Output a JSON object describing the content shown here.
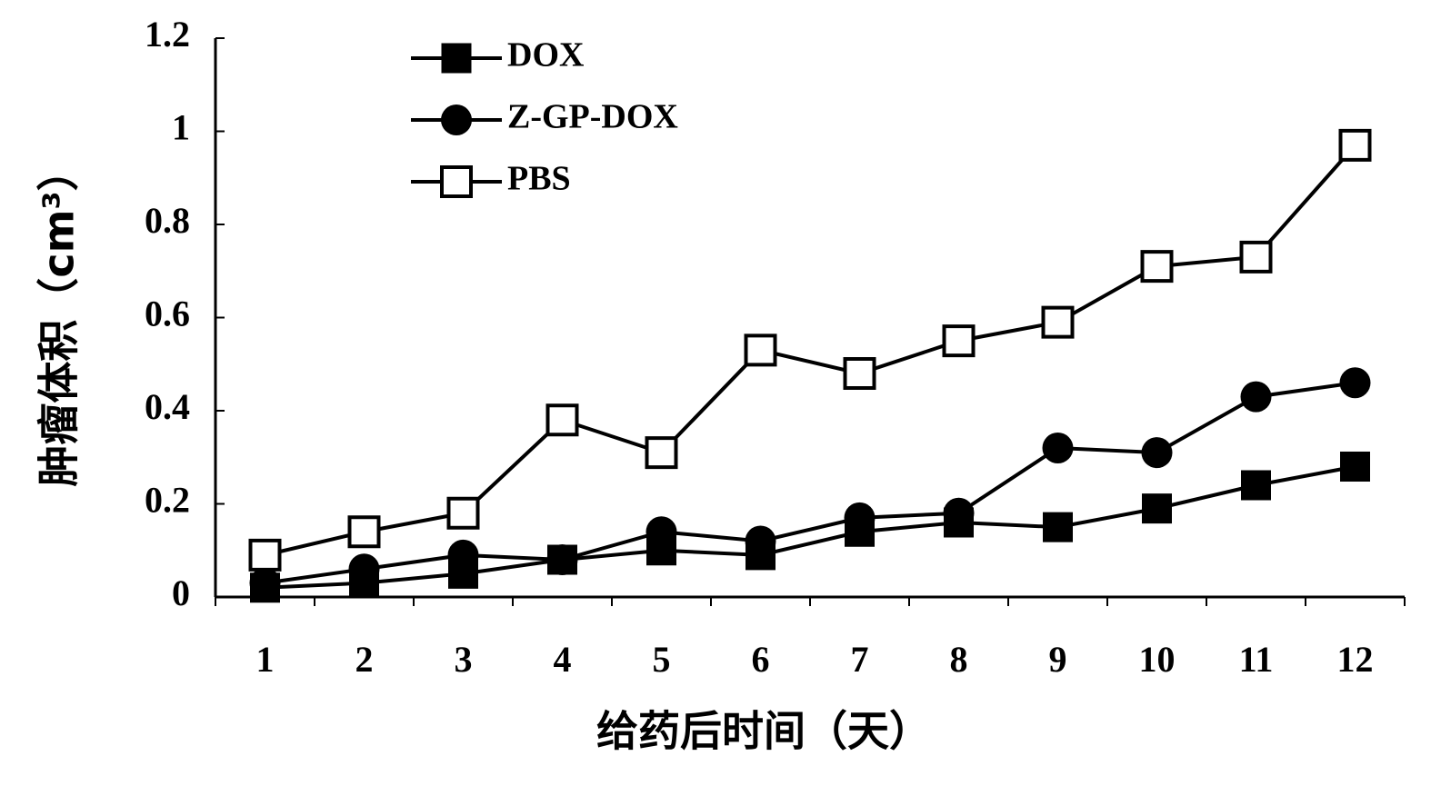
{
  "chart_data": {
    "type": "line",
    "x_label": "给药后时间（天）",
    "y_label": "肿瘤体积（cm³）",
    "categories": [
      "1",
      "2",
      "3",
      "4",
      "5",
      "6",
      "7",
      "8",
      "9",
      "10",
      "11",
      "12"
    ],
    "series": [
      {
        "name": "DOX",
        "color": "#000000",
        "marker": "square",
        "values": [
          0.02,
          0.03,
          0.05,
          0.08,
          0.1,
          0.09,
          0.14,
          0.16,
          0.15,
          0.19,
          0.24,
          0.28
        ]
      },
      {
        "name": "Z-GP-DOX",
        "color": "#000000",
        "marker": "circle",
        "values": [
          0.03,
          0.06,
          0.09,
          0.08,
          0.14,
          0.12,
          0.17,
          0.18,
          0.32,
          0.31,
          0.43,
          0.46
        ]
      },
      {
        "name": "PBS",
        "color": "#000000",
        "marker": "open-square",
        "values": [
          0.09,
          0.14,
          0.18,
          0.38,
          0.31,
          0.53,
          0.48,
          0.55,
          0.59,
          0.71,
          0.73,
          0.97
        ]
      }
    ],
    "ylim": [
      0,
      1.2
    ],
    "yticks": [
      0,
      0.2,
      0.4,
      0.6,
      0.8,
      1,
      1.2
    ],
    "grid": false,
    "legend": "upper left"
  }
}
